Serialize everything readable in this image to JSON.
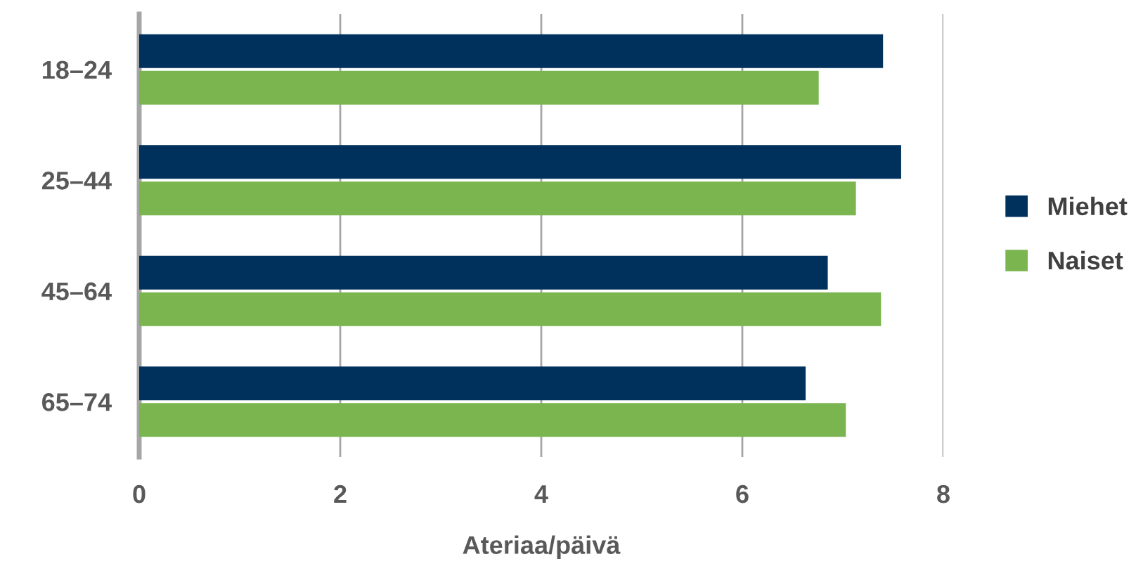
{
  "chart_data": {
    "type": "bar",
    "orientation": "horizontal",
    "xlabel": "Ateriaa/päivä",
    "categories": [
      "18–24",
      "25–44",
      "45–64",
      "65–74"
    ],
    "series": [
      {
        "name": "Miehet",
        "color": "#00305c",
        "values": [
          7.4,
          7.58,
          6.85,
          6.63
        ]
      },
      {
        "name": "Naiset",
        "color": "#7ab550",
        "values": [
          6.76,
          7.13,
          7.38,
          7.03
        ]
      }
    ],
    "xlim": [
      0,
      8
    ],
    "xticks": [
      0,
      2,
      4,
      6,
      8
    ],
    "grid": "x",
    "legend": "right"
  }
}
